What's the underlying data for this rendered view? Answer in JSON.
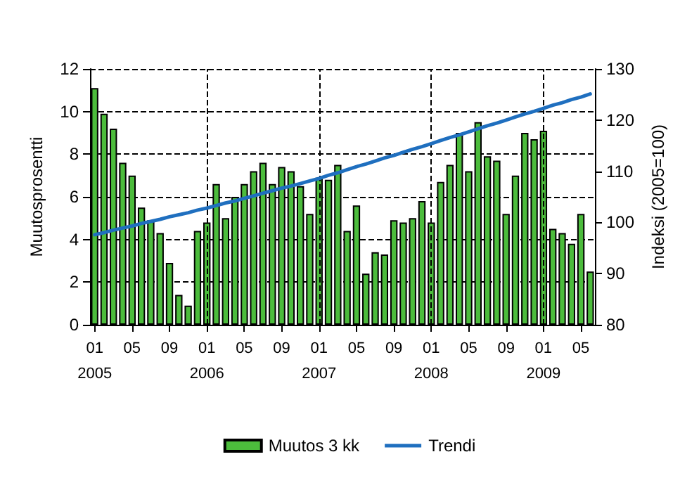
{
  "chart_data": {
    "type": "bar",
    "ylabel": "Muutosprosentti",
    "y2label": "Indeksi (2005=100)",
    "categories": [
      "01\n2005",
      null,
      null,
      null,
      "05",
      null,
      null,
      null,
      "09",
      null,
      null,
      null,
      "01\n2006",
      null,
      null,
      null,
      "05",
      null,
      null,
      null,
      "09",
      null,
      null,
      null,
      "01\n2007",
      null,
      null,
      null,
      "05",
      null,
      null,
      null,
      "09",
      null,
      null,
      null,
      "01\n2008",
      null,
      null,
      null,
      "05",
      null,
      null,
      null,
      "09",
      null,
      null,
      null,
      "01\n2009",
      null,
      null,
      null,
      "05",
      null
    ],
    "series": [
      {
        "name": "Muutos 3 kk",
        "color": "#4cbc3c",
        "values": [
          11.1,
          9.9,
          9.2,
          7.6,
          7.0,
          5.5,
          4.9,
          4.3,
          2.9,
          1.4,
          0.9,
          4.4,
          4.8,
          6.6,
          5.0,
          6.0,
          6.6,
          7.2,
          7.6,
          6.6,
          7.4,
          7.2,
          6.5,
          5.2,
          6.9,
          6.8,
          7.5,
          4.4,
          5.6,
          2.4,
          3.4,
          3.3,
          4.9,
          4.8,
          5.0,
          5.8,
          4.8,
          6.7,
          7.5,
          9.0,
          7.2,
          9.5,
          7.9,
          7.7,
          5.2,
          7.0,
          9.0,
          8.7,
          9.1,
          4.5,
          4.3,
          3.8,
          5.2,
          2.5
        ]
      },
      {
        "name": "Trendi",
        "type": "line",
        "axis": "y2",
        "color": "#1f6fbf",
        "values": [
          97.6,
          98.0,
          98.5,
          98.9,
          99.3,
          99.8,
          100.2,
          100.6,
          101.1,
          101.5,
          101.9,
          102.4,
          102.8,
          103.3,
          103.8,
          104.2,
          104.7,
          105.2,
          105.7,
          106.2,
          106.7,
          107.1,
          107.6,
          108.1,
          108.6,
          109.2,
          109.7,
          110.3,
          110.9,
          111.4,
          112.0,
          112.6,
          113.1,
          113.7,
          114.3,
          114.8,
          115.4,
          116.0,
          116.6,
          117.1,
          117.7,
          118.3,
          118.9,
          119.4,
          120.0,
          120.6,
          121.2,
          121.7,
          122.3,
          122.9,
          123.4,
          124.0,
          124.5,
          125.1
        ]
      }
    ],
    "ylim": [
      0,
      12
    ],
    "yticks": [
      0,
      2,
      4,
      6,
      8,
      10,
      12
    ],
    "y2lim": [
      80,
      130
    ],
    "y2ticks": [
      80,
      90,
      100,
      110,
      120,
      130
    ],
    "grid": "y",
    "legend": "bottom",
    "marker": "none",
    "line_style": "solid",
    "ref_lines": [
      {
        "axis": "x",
        "value": "01\n2006",
        "color": "#000000",
        "line_style": "dashed"
      },
      {
        "axis": "x",
        "value": "01\n2007",
        "color": "#000000",
        "line_style": "dashed"
      },
      {
        "axis": "x",
        "value": "01\n2008",
        "color": "#000000",
        "line_style": "dashed"
      },
      {
        "axis": "x",
        "value": "01\n2009",
        "color": "#000000",
        "line_style": "dashed"
      }
    ]
  }
}
